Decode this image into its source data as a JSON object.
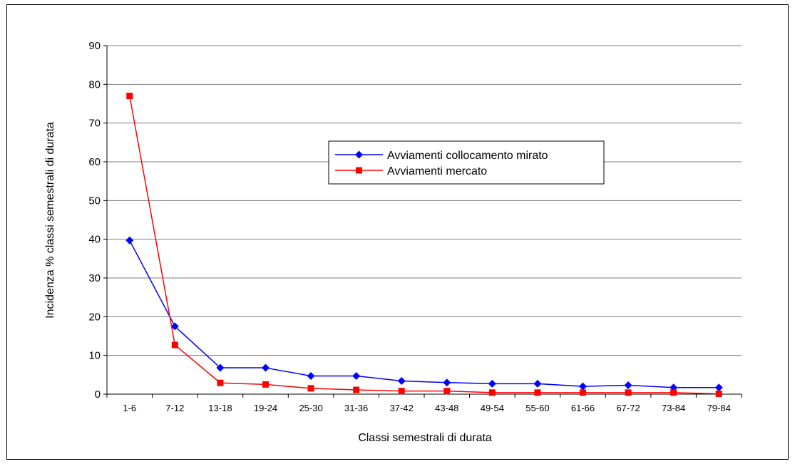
{
  "chart_data": {
    "type": "line",
    "title": "",
    "xlabel": "Classi semestrali di durata",
    "ylabel": "Incidenza % classi semestrali di durata",
    "categories": [
      "1-6",
      "7-12",
      "13-18",
      "19-24",
      "25-30",
      "31-36",
      "37-42",
      "43-48",
      "49-54",
      "55-60",
      "61-66",
      "67-72",
      "73-84",
      "79-84"
    ],
    "ylim": [
      0,
      90
    ],
    "yticks": [
      0,
      10,
      20,
      30,
      40,
      50,
      60,
      70,
      80,
      90
    ],
    "grid": true,
    "legend_position": "center-right",
    "series": [
      {
        "name": "Avviamenti collocamento mirato",
        "color": "#0000ff",
        "marker": "diamond",
        "values": [
          39.7,
          17.5,
          6.8,
          6.8,
          4.7,
          4.7,
          3.4,
          3.0,
          2.7,
          2.7,
          2.0,
          2.3,
          1.7,
          1.7
        ]
      },
      {
        "name": "Avviamenti mercato",
        "color": "#ff0000",
        "marker": "square",
        "values": [
          77.0,
          12.7,
          2.9,
          2.5,
          1.5,
          1.1,
          0.8,
          0.8,
          0.4,
          0.4,
          0.4,
          0.4,
          0.4,
          0.1
        ]
      }
    ]
  }
}
